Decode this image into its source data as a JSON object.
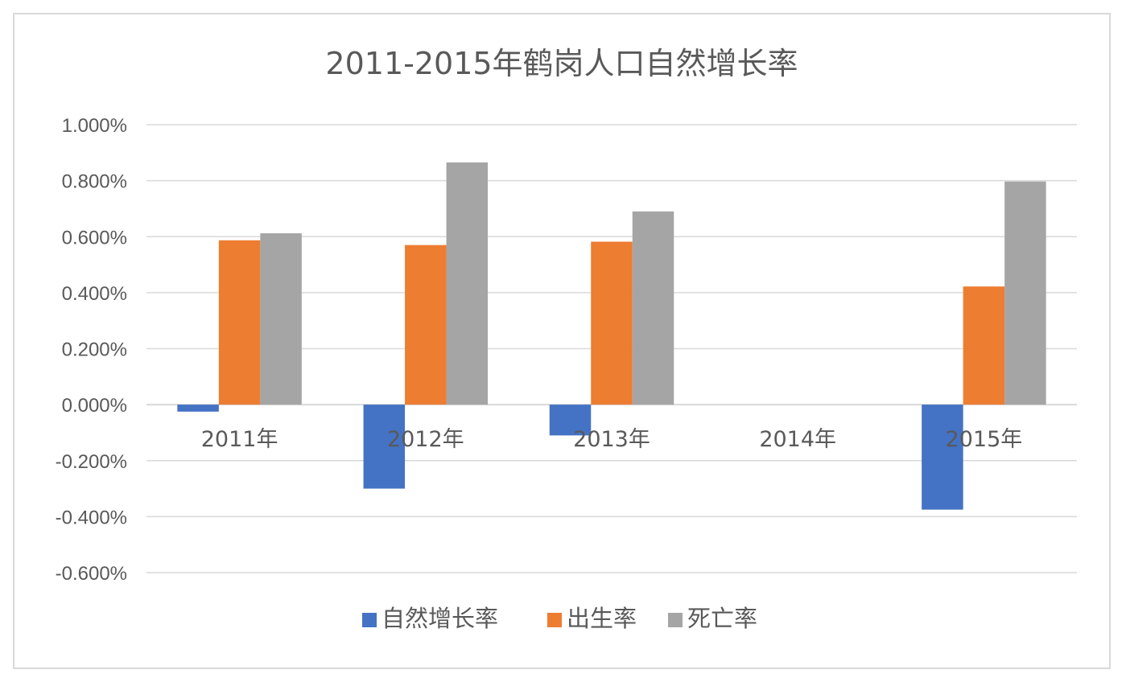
{
  "chart_data": {
    "type": "bar",
    "title": "2011-2015年鹤岗人口自然增长率",
    "categories": [
      "2011年",
      "2012年",
      "2013年",
      "2014年",
      "2015年"
    ],
    "series": [
      {
        "name": "自然增长率",
        "color": "#4472c4",
        "values": [
          -0.025,
          -0.3,
          -0.11,
          null,
          -0.375
        ]
      },
      {
        "name": "出生率",
        "color": "#ed7d31",
        "values": [
          0.587,
          0.57,
          0.582,
          null,
          0.422
        ]
      },
      {
        "name": "死亡率",
        "color": "#a5a5a5",
        "values": [
          0.612,
          0.865,
          0.69,
          null,
          0.797
        ]
      }
    ],
    "ylim": [
      -0.6,
      1.0
    ],
    "ytick_labels": [
      "1.000%",
      "0.800%",
      "0.600%",
      "0.400%",
      "0.200%",
      "0.000%",
      "-0.200%",
      "-0.400%",
      "-0.600%"
    ],
    "ytick_values": [
      1.0,
      0.8,
      0.6,
      0.4,
      0.2,
      0.0,
      -0.2,
      -0.4,
      -0.6
    ],
    "grid": true,
    "legend_position": "bottom"
  }
}
